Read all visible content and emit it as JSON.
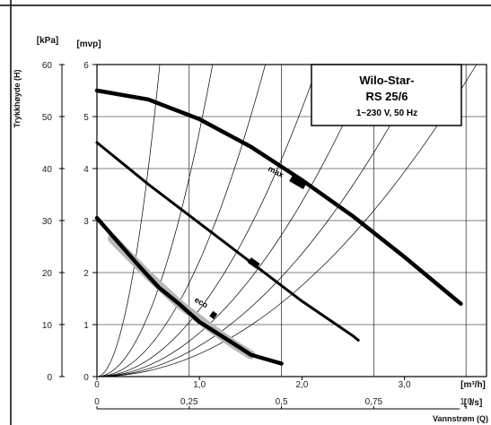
{
  "chart_data": {
    "type": "line",
    "title_box": {
      "line1": "Wilo-Star-",
      "line2": "RS 25/6",
      "line3": "1~230 V, 50 Hz"
    },
    "ylabel": "Trykkhøyde (H)",
    "xlabel": "Vannstrøm (Q)",
    "y_unit_left": "[kPa]",
    "y_unit_right": "[mvp]",
    "x_unit_top": "[m³/h]",
    "x_unit_bottom": "[ l/s]",
    "kpa_ticks": [
      "60",
      "50",
      "40",
      "30",
      "20",
      "10",
      "0"
    ],
    "kpa_values": [
      60,
      50,
      40,
      30,
      20,
      10,
      0
    ],
    "mvp_ticks": [
      "6",
      "5",
      "4",
      "3",
      "2",
      "1",
      "0"
    ],
    "mvp_values": [
      6,
      5,
      4,
      3,
      2,
      1,
      0
    ],
    "m3h_ticks": [
      "0",
      "1,0",
      "2,0",
      "3,0"
    ],
    "m3h_values": [
      0,
      1,
      2,
      3
    ],
    "ls_ticks": [
      "0",
      "0,25",
      "0,5",
      "0,75",
      "1,0"
    ],
    "ls_values": [
      0,
      0.25,
      0.5,
      0.75,
      1.0
    ],
    "xlim_m3h": [
      0,
      3.8
    ],
    "ylim_mvp": [
      0,
      6
    ],
    "grid": true,
    "series": [
      {
        "name": "max",
        "width": "thick",
        "x": [
          0,
          0.5,
          1.0,
          1.5,
          2.0,
          2.5,
          3.0,
          3.55
        ],
        "y": [
          5.5,
          5.33,
          4.95,
          4.42,
          3.78,
          3.08,
          2.3,
          1.4
        ]
      },
      {
        "x": [
          0,
          0.5,
          1.0,
          1.5,
          2.0,
          2.5,
          2.55
        ],
        "y": [
          4.5,
          3.7,
          2.95,
          2.2,
          1.45,
          0.78,
          0.7
        ]
      },
      {
        "name": "eco",
        "width": "thick",
        "x": [
          0,
          0.2,
          0.4,
          0.6,
          0.8,
          1.0,
          1.2,
          1.4,
          1.5,
          1.8
        ],
        "y": [
          3.05,
          2.6,
          2.15,
          1.72,
          1.4,
          1.05,
          0.8,
          0.55,
          0.42,
          0.25
        ]
      }
    ],
    "eco_band": {
      "x": [
        0.15,
        0.5,
        0.8,
        1.1,
        1.35,
        1.5
      ],
      "y": [
        2.65,
        1.95,
        1.4,
        0.95,
        0.6,
        0.42
      ]
    },
    "curve_labels": [
      "max",
      "eco"
    ]
  }
}
